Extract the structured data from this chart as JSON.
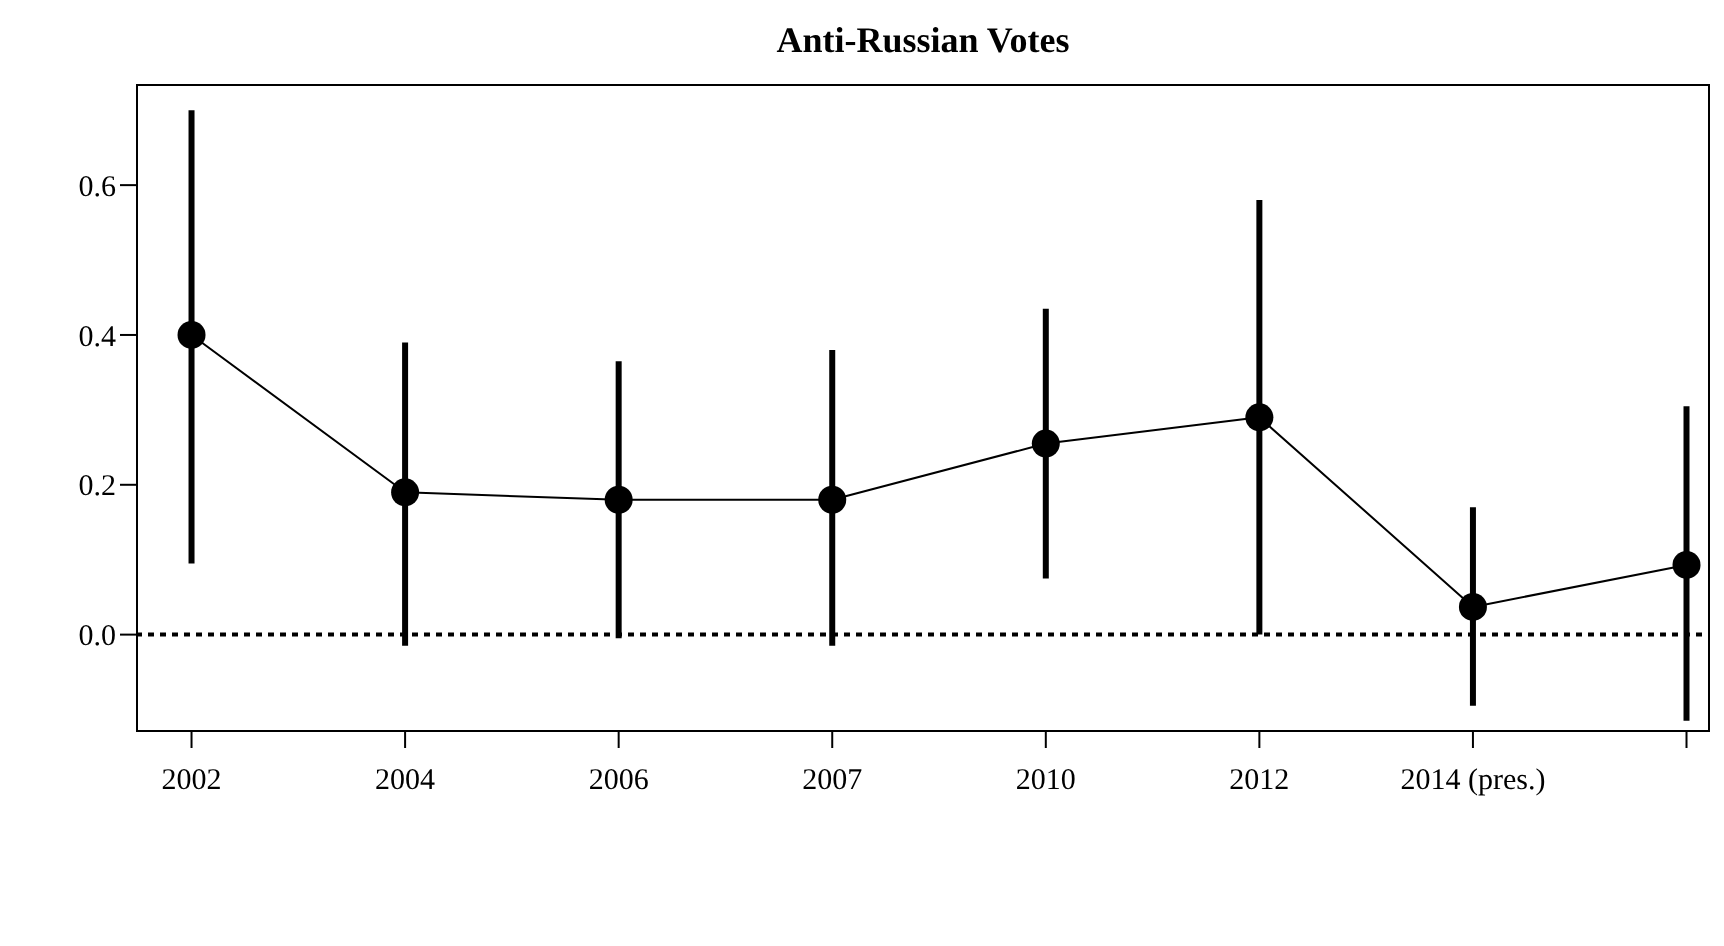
{
  "chart_data": {
    "type": "line",
    "title": "Anti-Russian Votes",
    "categories": [
      "2002",
      "2004",
      "2006",
      "2007",
      "2010",
      "2012",
      "2014 (pres.)",
      null
    ],
    "series": [
      {
        "color": "#000000",
        "values": [
          0.4,
          0.19,
          0.18,
          0.18,
          0.255,
          0.29,
          0.037,
          0.093
        ],
        "errors": [
          [
            0.095,
            0.7
          ],
          [
            -0.015,
            0.39
          ],
          [
            -0.005,
            0.365
          ],
          [
            -0.015,
            0.38
          ],
          [
            0.075,
            0.435
          ],
          [
            0.0,
            0.58
          ],
          [
            -0.095,
            0.17
          ],
          [
            -0.115,
            0.305
          ]
        ]
      }
    ],
    "ylim": [
      -0.13,
      0.735
    ],
    "yticks": [
      {
        "value": 0,
        "label": "0.0"
      },
      0.2,
      0.4,
      0.6
    ],
    "ref_lines": [
      {
        "axis": "y",
        "value": 0,
        "color": "#000000",
        "line_style": "dotted"
      }
    ],
    "marker": "circle",
    "line_style": "solid",
    "grid": false,
    "legend": false
  }
}
